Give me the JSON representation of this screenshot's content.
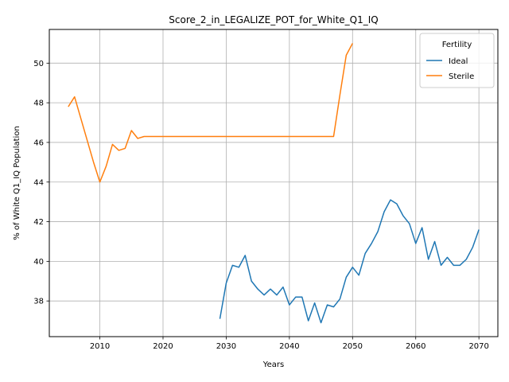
{
  "chart_data": {
    "type": "line",
    "title": "Score_2_in_LEGALIZE_POT_for_White_Q1_IQ",
    "xlabel": "Years",
    "ylabel": "% of White Q1_IQ Population",
    "xlim": [
      2002,
      2073
    ],
    "ylim": [
      36.2,
      51.7
    ],
    "xticks": [
      2010,
      2020,
      2030,
      2040,
      2050,
      2060,
      2070
    ],
    "yticks": [
      38,
      40,
      42,
      44,
      46,
      48,
      50
    ],
    "grid": true,
    "legend": {
      "title": "Fertility",
      "placement": "top-right"
    },
    "series": [
      {
        "name": "Ideal",
        "color": "#1f77b4",
        "x": [
          2029,
          2030,
          2031,
          2032,
          2033,
          2034,
          2035,
          2036,
          2037,
          2038,
          2039,
          2040,
          2041,
          2042,
          2043,
          2044,
          2045,
          2046,
          2047,
          2048,
          2049,
          2050,
          2051,
          2052,
          2053,
          2054,
          2055,
          2056,
          2057,
          2058,
          2059,
          2060,
          2061,
          2062,
          2063,
          2064,
          2065,
          2066,
          2067,
          2068,
          2069,
          2070
        ],
        "values": [
          37.1,
          38.9,
          39.8,
          39.7,
          40.3,
          39.0,
          38.6,
          38.3,
          38.6,
          38.3,
          38.7,
          37.8,
          38.2,
          38.2,
          37.0,
          37.9,
          36.9,
          37.8,
          37.7,
          38.1,
          39.2,
          39.7,
          39.3,
          40.4,
          40.9,
          41.5,
          42.5,
          43.1,
          42.9,
          42.3,
          41.9,
          40.9,
          41.7,
          40.1,
          41.0,
          39.8,
          40.2,
          39.8,
          39.8,
          40.1,
          40.7,
          41.6
        ]
      },
      {
        "name": "Sterile",
        "color": "#ff7f0e",
        "x": [
          2005,
          2006,
          2007,
          2008,
          2009,
          2010,
          2011,
          2012,
          2013,
          2014,
          2015,
          2016,
          2017,
          2018,
          2019,
          2020,
          2021,
          2022,
          2023,
          2024,
          2025,
          2026,
          2027,
          2028,
          2029,
          2030,
          2031,
          2032,
          2033,
          2034,
          2035,
          2036,
          2037,
          2038,
          2039,
          2040,
          2041,
          2042,
          2043,
          2044,
          2045,
          2046,
          2047,
          2048,
          2049,
          2050
        ],
        "values": [
          47.8,
          48.3,
          47.2,
          46.1,
          45.0,
          44.0,
          44.8,
          45.9,
          45.6,
          45.7,
          46.6,
          46.2,
          46.3,
          46.3,
          46.3,
          46.3,
          46.3,
          46.3,
          46.3,
          46.3,
          46.3,
          46.3,
          46.3,
          46.3,
          46.3,
          46.3,
          46.3,
          46.3,
          46.3,
          46.3,
          46.3,
          46.3,
          46.3,
          46.3,
          46.3,
          46.3,
          46.3,
          46.3,
          46.3,
          46.3,
          46.3,
          46.3,
          46.3,
          48.4,
          50.4,
          51.0
        ]
      }
    ]
  }
}
